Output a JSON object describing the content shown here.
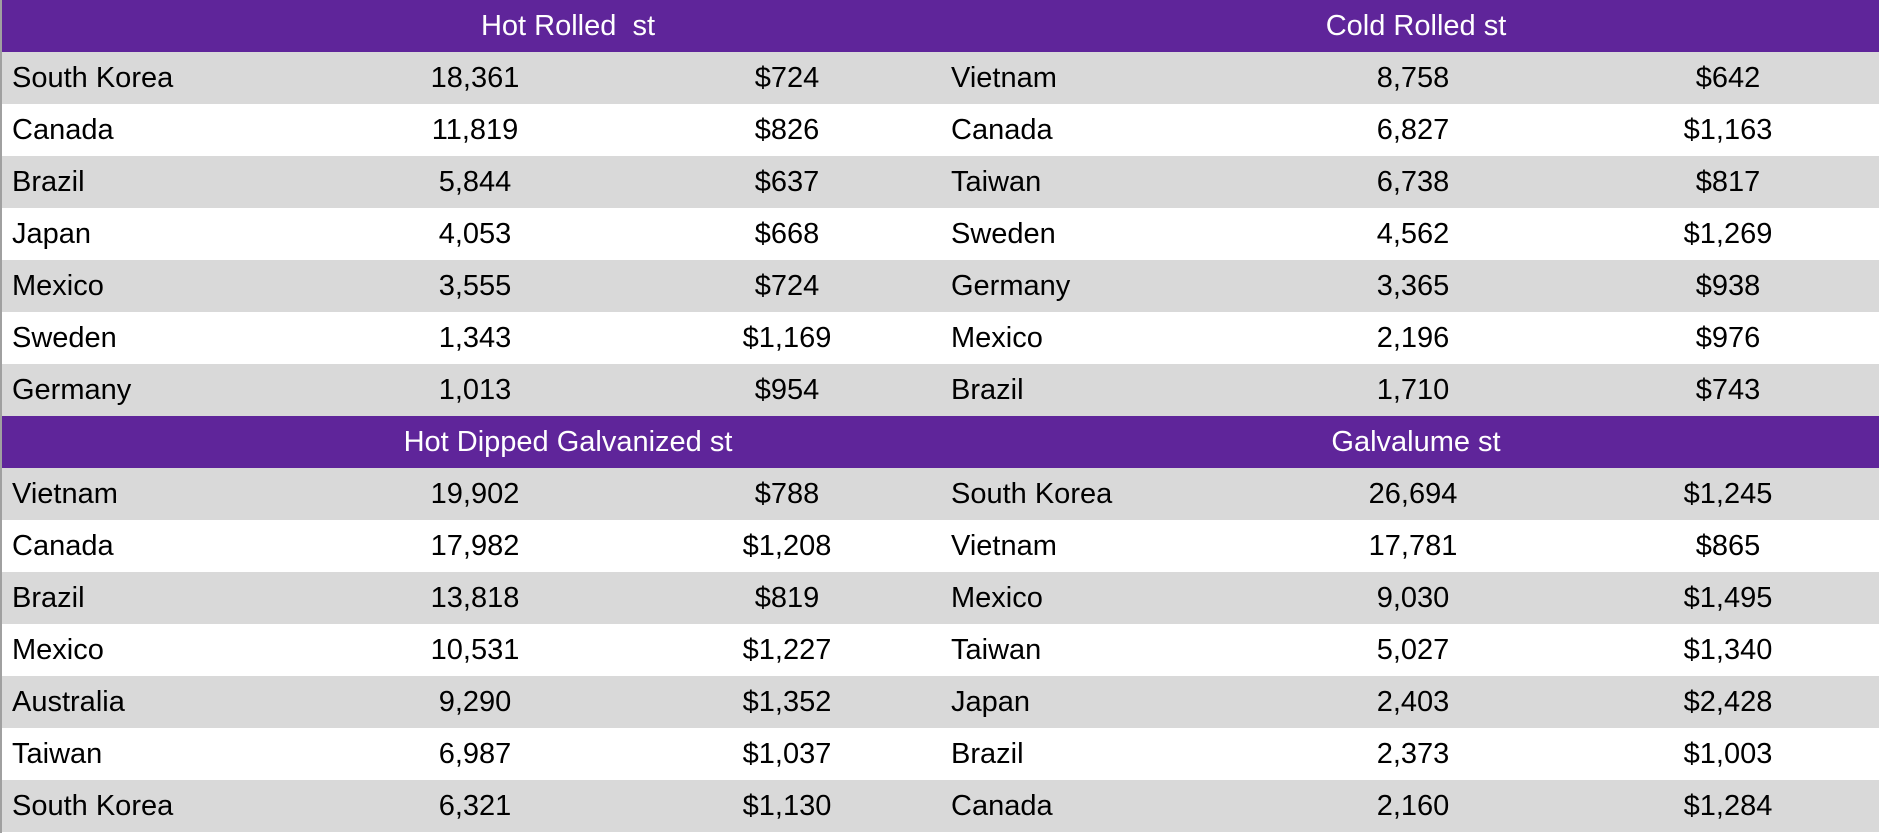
{
  "colors": {
    "header": "#5f259a",
    "band": "#d9d9d9"
  },
  "sections": [
    {
      "left": {
        "title": "Hot Rolled  st",
        "rows": [
          [
            "South Korea",
            "18,361",
            "$724"
          ],
          [
            "Canada",
            "11,819",
            "$826"
          ],
          [
            "Brazil",
            "5,844",
            "$637"
          ],
          [
            "Japan",
            "4,053",
            "$668"
          ],
          [
            "Mexico",
            "3,555",
            "$724"
          ],
          [
            "Sweden",
            "1,343",
            "$1,169"
          ],
          [
            "Germany",
            "1,013",
            "$954"
          ]
        ]
      },
      "right": {
        "title": "Cold Rolled st",
        "rows": [
          [
            "Vietnam",
            "8,758",
            "$642"
          ],
          [
            "Canada",
            "6,827",
            "$1,163"
          ],
          [
            "Taiwan",
            "6,738",
            "$817"
          ],
          [
            "Sweden",
            "4,562",
            "$1,269"
          ],
          [
            "Germany",
            "3,365",
            "$938"
          ],
          [
            "Mexico",
            "2,196",
            "$976"
          ],
          [
            "Brazil",
            "1,710",
            "$743"
          ]
        ]
      }
    },
    {
      "left": {
        "title": "Hot Dipped Galvanized st",
        "rows": [
          [
            "Vietnam",
            "19,902",
            "$788"
          ],
          [
            "Canada",
            "17,982",
            "$1,208"
          ],
          [
            "Brazil",
            "13,818",
            "$819"
          ],
          [
            "Mexico",
            "10,531",
            "$1,227"
          ],
          [
            "Australia",
            "9,290",
            "$1,352"
          ],
          [
            "Taiwan",
            "6,987",
            "$1,037"
          ],
          [
            "South Korea",
            "6,321",
            "$1,130"
          ]
        ]
      },
      "right": {
        "title": "Galvalume st",
        "rows": [
          [
            "South Korea",
            "26,694",
            "$1,245"
          ],
          [
            "Vietnam",
            "17,781",
            "$865"
          ],
          [
            "Mexico",
            "9,030",
            "$1,495"
          ],
          [
            "Taiwan",
            "5,027",
            "$1,340"
          ],
          [
            "Japan",
            "2,403",
            "$2,428"
          ],
          [
            "Brazil",
            "2,373",
            "$1,003"
          ],
          [
            "Canada",
            "2,160",
            "$1,284"
          ]
        ]
      }
    }
  ]
}
